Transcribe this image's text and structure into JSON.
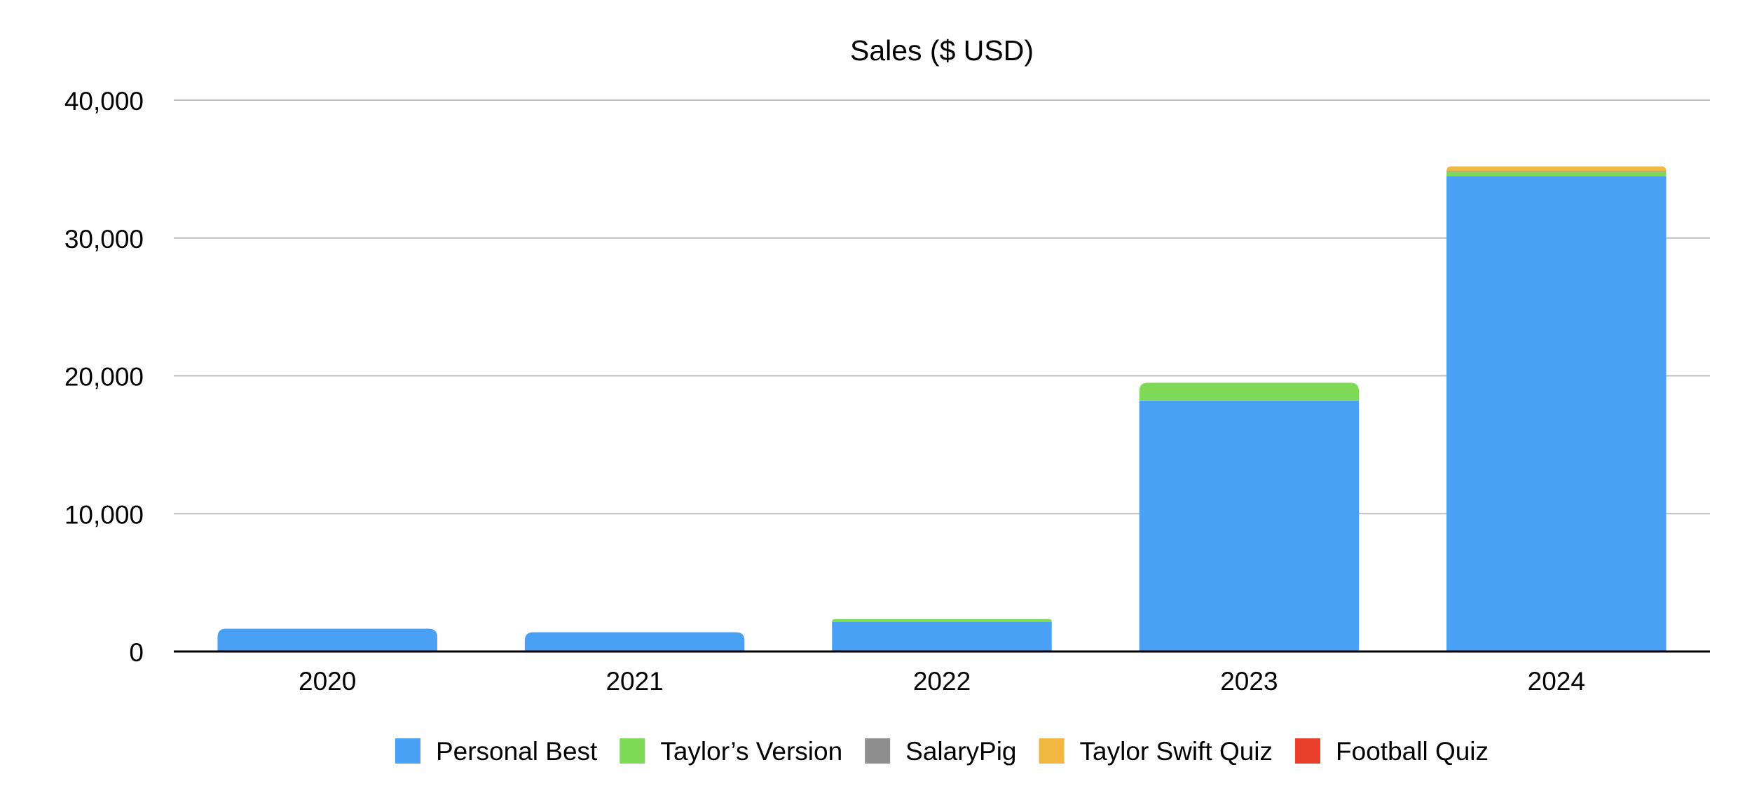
{
  "chart_data": {
    "type": "bar",
    "stacked": true,
    "title": "Sales ($ USD)",
    "xlabel": "",
    "ylabel": "",
    "categories": [
      "2020",
      "2021",
      "2022",
      "2023",
      "2024"
    ],
    "ylim": [
      0,
      40000
    ],
    "y_ticks": [
      0,
      10000,
      20000,
      30000,
      40000
    ],
    "y_tick_labels": [
      "0",
      "10,000",
      "20,000",
      "30,000",
      "40,000"
    ],
    "grid": true,
    "legend_position": "bottom",
    "series": [
      {
        "name": "Personal Best",
        "color": "#4aa0f5",
        "values": [
          1650,
          1400,
          2150,
          18200,
          34500
        ]
      },
      {
        "name": "Taylor’s Version",
        "color": "#7ed957",
        "values": [
          0,
          0,
          200,
          1300,
          300
        ]
      },
      {
        "name": "SalaryPig",
        "color": "#8e8e8e",
        "values": [
          0,
          0,
          0,
          0,
          50
        ]
      },
      {
        "name": "Taylor Swift Quiz",
        "color": "#f0b840",
        "values": [
          0,
          0,
          0,
          0,
          350
        ]
      },
      {
        "name": "Football Quiz",
        "color": "#e8402a",
        "values": [
          0,
          0,
          0,
          0,
          0
        ]
      }
    ]
  }
}
